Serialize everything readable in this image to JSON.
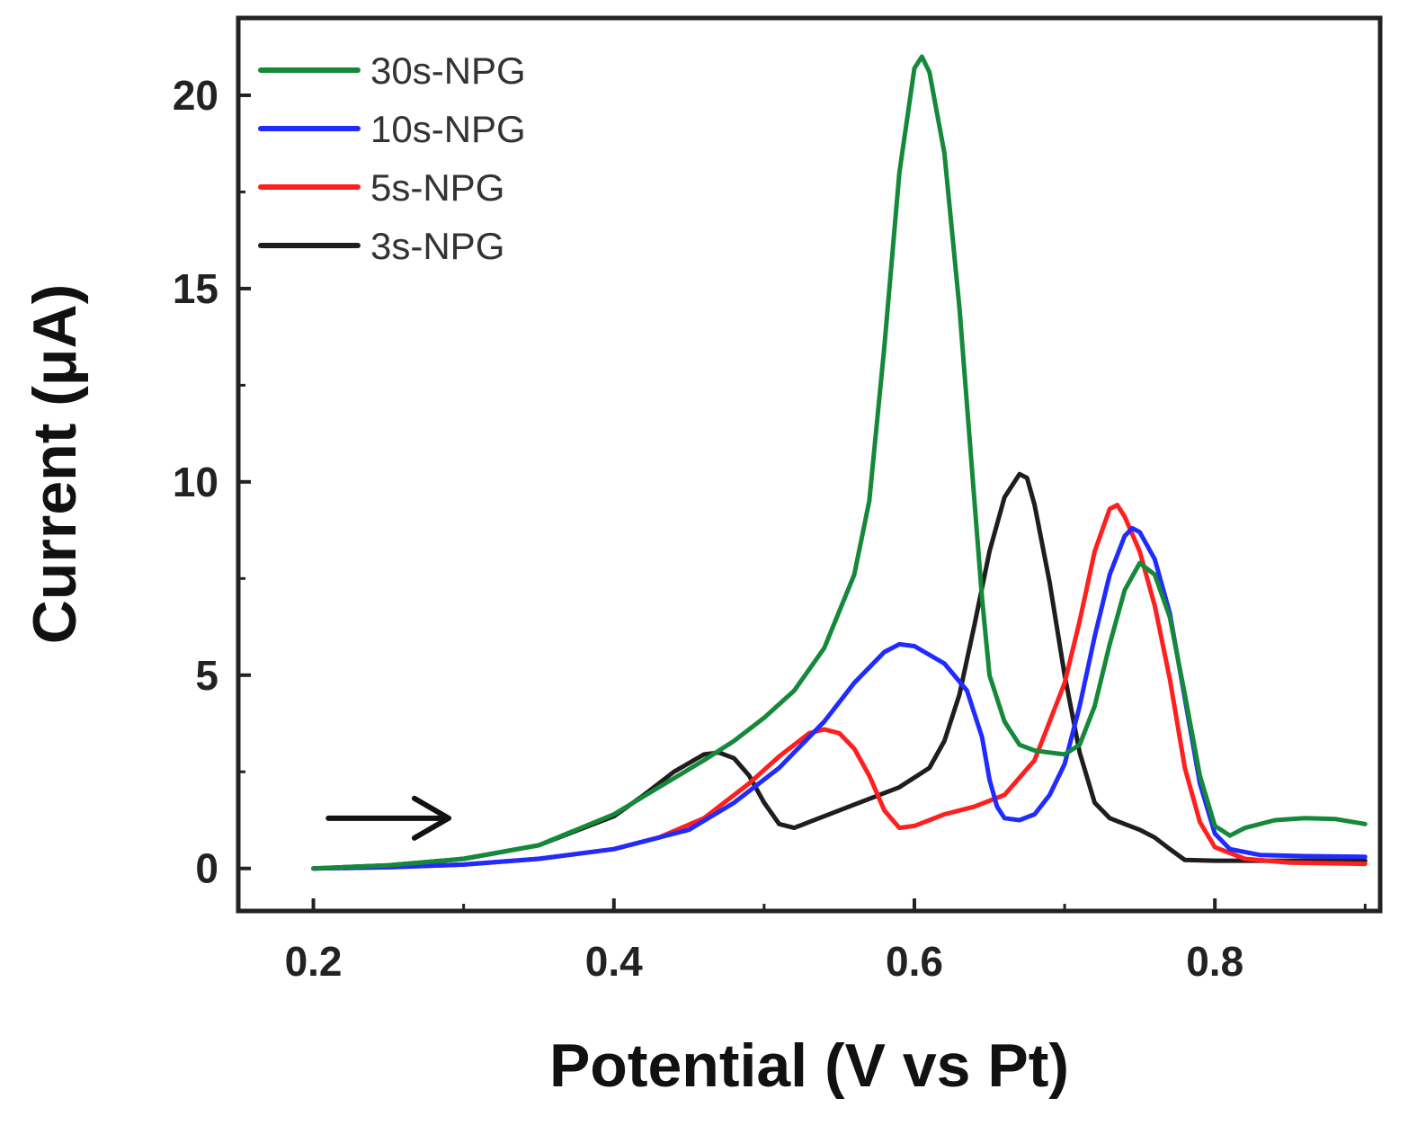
{
  "chart_data": {
    "type": "line",
    "title": "",
    "xlabel": "Potential (V vs Pt)",
    "ylabel": "Current (μA)",
    "xlim": [
      0.15,
      0.91
    ],
    "ylim": [
      -1.1,
      22.0
    ],
    "xticks": [
      {
        "value": 0.2,
        "label": "0.2"
      },
      {
        "value": 0.4,
        "label": "0.4"
      },
      {
        "value": 0.6,
        "label": "0.6"
      },
      {
        "value": 0.8,
        "label": "0.8"
      }
    ],
    "yticks": [
      {
        "value": 0,
        "label": "0"
      },
      {
        "value": 5,
        "label": "5"
      },
      {
        "value": 10,
        "label": "10"
      },
      {
        "value": 15,
        "label": "15"
      },
      {
        "value": 20,
        "label": "20"
      }
    ],
    "x_minor_step": 0.1,
    "y_minor_step": 2.5,
    "grid": false,
    "legend_position": "top-left",
    "annotation": {
      "type": "arrow",
      "direction": "right",
      "x_from": 0.21,
      "x_to": 0.29,
      "y": 1.3
    },
    "series": [
      {
        "name": "30s-NPG",
        "color": "#15893a",
        "points": [
          [
            0.2,
            0.0
          ],
          [
            0.25,
            0.08
          ],
          [
            0.3,
            0.25
          ],
          [
            0.35,
            0.6
          ],
          [
            0.4,
            1.4
          ],
          [
            0.43,
            2.1
          ],
          [
            0.46,
            2.8
          ],
          [
            0.48,
            3.3
          ],
          [
            0.5,
            3.9
          ],
          [
            0.52,
            4.6
          ],
          [
            0.54,
            5.7
          ],
          [
            0.56,
            7.6
          ],
          [
            0.57,
            9.5
          ],
          [
            0.58,
            13.5
          ],
          [
            0.59,
            18.0
          ],
          [
            0.6,
            20.7
          ],
          [
            0.605,
            21.0
          ],
          [
            0.61,
            20.6
          ],
          [
            0.62,
            18.5
          ],
          [
            0.63,
            14.5
          ],
          [
            0.64,
            9.5
          ],
          [
            0.645,
            7.0
          ],
          [
            0.65,
            5.0
          ],
          [
            0.66,
            3.8
          ],
          [
            0.67,
            3.2
          ],
          [
            0.68,
            3.05
          ],
          [
            0.69,
            3.0
          ],
          [
            0.7,
            2.95
          ],
          [
            0.71,
            3.2
          ],
          [
            0.72,
            4.2
          ],
          [
            0.73,
            5.8
          ],
          [
            0.74,
            7.2
          ],
          [
            0.75,
            7.9
          ],
          [
            0.76,
            7.6
          ],
          [
            0.77,
            6.5
          ],
          [
            0.78,
            4.5
          ],
          [
            0.79,
            2.4
          ],
          [
            0.8,
            1.1
          ],
          [
            0.81,
            0.85
          ],
          [
            0.82,
            1.05
          ],
          [
            0.84,
            1.25
          ],
          [
            0.86,
            1.3
          ],
          [
            0.88,
            1.28
          ],
          [
            0.9,
            1.15
          ]
        ]
      },
      {
        "name": "10s-NPG",
        "color": "#1f2bff",
        "points": [
          [
            0.2,
            0.0
          ],
          [
            0.25,
            0.03
          ],
          [
            0.3,
            0.1
          ],
          [
            0.35,
            0.25
          ],
          [
            0.4,
            0.5
          ],
          [
            0.45,
            1.0
          ],
          [
            0.48,
            1.7
          ],
          [
            0.51,
            2.6
          ],
          [
            0.54,
            3.8
          ],
          [
            0.56,
            4.8
          ],
          [
            0.58,
            5.6
          ],
          [
            0.59,
            5.8
          ],
          [
            0.6,
            5.75
          ],
          [
            0.62,
            5.3
          ],
          [
            0.635,
            4.6
          ],
          [
            0.645,
            3.4
          ],
          [
            0.65,
            2.3
          ],
          [
            0.655,
            1.6
          ],
          [
            0.66,
            1.3
          ],
          [
            0.67,
            1.25
          ],
          [
            0.68,
            1.4
          ],
          [
            0.69,
            1.9
          ],
          [
            0.7,
            2.7
          ],
          [
            0.71,
            4.2
          ],
          [
            0.72,
            6.0
          ],
          [
            0.73,
            7.6
          ],
          [
            0.74,
            8.6
          ],
          [
            0.745,
            8.8
          ],
          [
            0.75,
            8.7
          ],
          [
            0.76,
            8.0
          ],
          [
            0.77,
            6.6
          ],
          [
            0.78,
            4.4
          ],
          [
            0.79,
            2.2
          ],
          [
            0.8,
            0.9
          ],
          [
            0.81,
            0.5
          ],
          [
            0.83,
            0.35
          ],
          [
            0.86,
            0.32
          ],
          [
            0.9,
            0.3
          ]
        ]
      },
      {
        "name": "5s-NPG",
        "color": "#ff1f1f",
        "points": [
          [
            0.2,
            0.0
          ],
          [
            0.25,
            0.03
          ],
          [
            0.3,
            0.1
          ],
          [
            0.35,
            0.25
          ],
          [
            0.4,
            0.5
          ],
          [
            0.43,
            0.8
          ],
          [
            0.46,
            1.3
          ],
          [
            0.49,
            2.2
          ],
          [
            0.51,
            2.9
          ],
          [
            0.53,
            3.5
          ],
          [
            0.54,
            3.6
          ],
          [
            0.55,
            3.5
          ],
          [
            0.56,
            3.1
          ],
          [
            0.57,
            2.4
          ],
          [
            0.58,
            1.5
          ],
          [
            0.59,
            1.05
          ],
          [
            0.6,
            1.1
          ],
          [
            0.62,
            1.4
          ],
          [
            0.64,
            1.6
          ],
          [
            0.66,
            1.9
          ],
          [
            0.68,
            2.8
          ],
          [
            0.7,
            4.8
          ],
          [
            0.71,
            6.4
          ],
          [
            0.72,
            8.2
          ],
          [
            0.73,
            9.3
          ],
          [
            0.735,
            9.4
          ],
          [
            0.74,
            9.1
          ],
          [
            0.75,
            8.2
          ],
          [
            0.76,
            6.8
          ],
          [
            0.77,
            4.9
          ],
          [
            0.78,
            2.6
          ],
          [
            0.79,
            1.2
          ],
          [
            0.8,
            0.55
          ],
          [
            0.82,
            0.25
          ],
          [
            0.85,
            0.15
          ],
          [
            0.9,
            0.12
          ]
        ]
      },
      {
        "name": "3s-NPG",
        "color": "#1e1e1e",
        "points": [
          [
            0.2,
            0.0
          ],
          [
            0.25,
            0.08
          ],
          [
            0.3,
            0.25
          ],
          [
            0.35,
            0.6
          ],
          [
            0.4,
            1.35
          ],
          [
            0.42,
            1.9
          ],
          [
            0.44,
            2.5
          ],
          [
            0.46,
            2.95
          ],
          [
            0.47,
            3.0
          ],
          [
            0.48,
            2.85
          ],
          [
            0.49,
            2.4
          ],
          [
            0.5,
            1.7
          ],
          [
            0.51,
            1.15
          ],
          [
            0.52,
            1.05
          ],
          [
            0.53,
            1.2
          ],
          [
            0.55,
            1.5
          ],
          [
            0.57,
            1.8
          ],
          [
            0.59,
            2.1
          ],
          [
            0.61,
            2.6
          ],
          [
            0.62,
            3.3
          ],
          [
            0.63,
            4.5
          ],
          [
            0.64,
            6.3
          ],
          [
            0.65,
            8.2
          ],
          [
            0.66,
            9.6
          ],
          [
            0.67,
            10.2
          ],
          [
            0.675,
            10.1
          ],
          [
            0.68,
            9.4
          ],
          [
            0.69,
            7.4
          ],
          [
            0.7,
            5.0
          ],
          [
            0.71,
            3.0
          ],
          [
            0.72,
            1.7
          ],
          [
            0.73,
            1.3
          ],
          [
            0.74,
            1.15
          ],
          [
            0.75,
            1.0
          ],
          [
            0.76,
            0.8
          ],
          [
            0.77,
            0.5
          ],
          [
            0.78,
            0.22
          ],
          [
            0.8,
            0.2
          ],
          [
            0.84,
            0.2
          ],
          [
            0.9,
            0.2
          ]
        ]
      }
    ]
  }
}
